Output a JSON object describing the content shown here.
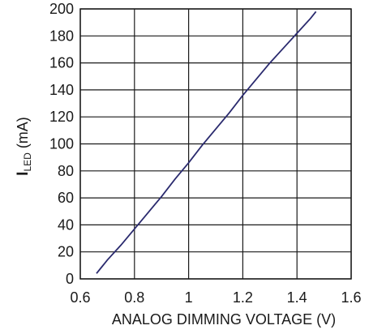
{
  "chart_data": {
    "type": "line",
    "title": "",
    "xlabel": "ANALOG DIMMING VOLTAGE (V)",
    "ylabel": {
      "main": "I",
      "subscript": "LED",
      "rest": " (mA)"
    },
    "xlim": [
      0.6,
      1.6
    ],
    "ylim": [
      0,
      200
    ],
    "x_ticks": [
      "0.6",
      "0.8",
      "1",
      "1.2",
      "1.4",
      "1.6"
    ],
    "y_ticks": [
      "0",
      "20",
      "40",
      "60",
      "80",
      "100",
      "120",
      "140",
      "160",
      "180",
      "200"
    ],
    "grid": true,
    "line_color": "#2a2a6e",
    "series": [
      {
        "x": [
          0.66,
          0.68,
          0.7,
          0.75,
          0.8,
          0.85,
          0.9,
          0.95,
          1.0,
          1.05,
          1.1,
          1.15,
          1.2,
          1.25,
          1.3,
          1.35,
          1.4,
          1.45,
          1.47
        ],
        "y": [
          4,
          9,
          14,
          25,
          37,
          49,
          61,
          74,
          86,
          99,
          111,
          123,
          136,
          148,
          160,
          171,
          182,
          193,
          198
        ]
      }
    ]
  }
}
